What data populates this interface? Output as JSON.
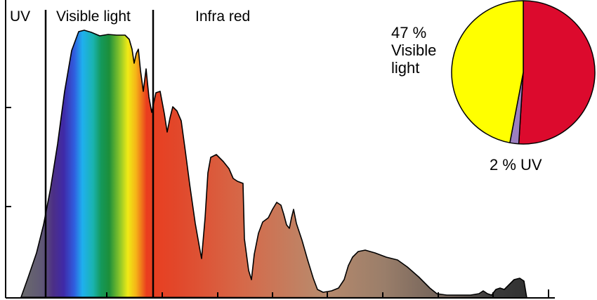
{
  "chart_data": [
    {
      "type": "area",
      "title": "",
      "xlabel": "",
      "ylabel": "",
      "regions": [
        "UV",
        "Visible light",
        "Infra red"
      ],
      "axis": {
        "x_ticks": 8,
        "y_ticks": 3,
        "grid": false
      },
      "colors": {
        "uv": "#5a4a7a",
        "visible_gradient": [
          "#3a1f7a",
          "#4b2fa8",
          "#2a6ae0",
          "#1fb6f0",
          "#16b3a0",
          "#1a9a3c",
          "#7fc32a",
          "#e8e81a",
          "#f7b21a",
          "#e8431e"
        ],
        "infrared_gradient": [
          "#e8351e",
          "#d86a4a",
          "#b98c6e",
          "#8a6a5a"
        ],
        "tail": "#3a3a3a"
      }
    },
    {
      "type": "pie",
      "title": "",
      "slices": [
        {
          "label": "Infra red",
          "value": 51,
          "color": "#dc0a2d"
        },
        {
          "label": "UV",
          "value": 2,
          "color": "#9b7fc0"
        },
        {
          "label": "Visible light",
          "value": 47,
          "color": "#ffff00"
        }
      ],
      "labels": {
        "visible_line1": "47 %",
        "visible_line2": "Visible",
        "visible_line3": "light",
        "uv": "2 % UV"
      }
    }
  ]
}
